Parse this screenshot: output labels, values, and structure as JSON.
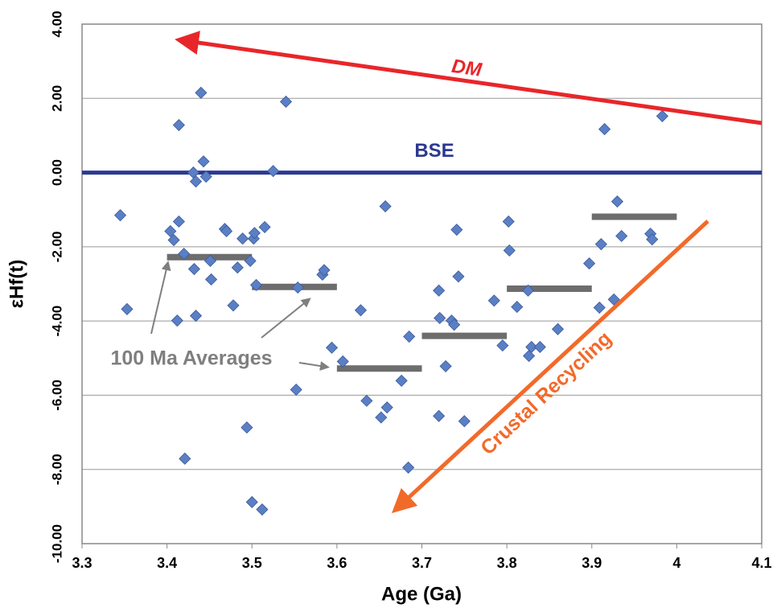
{
  "chart_data": {
    "type": "scatter",
    "x_label": "Age (Ga)",
    "y_label": "εHf(t)",
    "xlim": [
      3.3,
      4.1
    ],
    "xticks": [
      3.3,
      3.4,
      3.5,
      3.6,
      3.7,
      3.8,
      3.9,
      4,
      4.1
    ],
    "ylim": [
      -10,
      4
    ],
    "yticks": [
      {
        "value": -10,
        "label": "-10.00"
      },
      {
        "value": -8,
        "label": "-8.00"
      },
      {
        "value": -6,
        "label": "-6.00"
      },
      {
        "value": -4,
        "label": "-4.00"
      },
      {
        "value": -2,
        "label": "-2.00"
      },
      {
        "value": 0,
        "label": "0.00"
      },
      {
        "value": 2,
        "label": "2.00"
      },
      {
        "value": 4,
        "label": "4.00"
      }
    ],
    "grid": true,
    "color": "#5b7fc5",
    "x": [
      3.345,
      3.353,
      3.404,
      3.408,
      3.414,
      3.414,
      3.412,
      3.42,
      3.421,
      3.431,
      3.432,
      3.434,
      3.434,
      3.44,
      3.443,
      3.446,
      3.451,
      3.452,
      3.468,
      3.47,
      3.478,
      3.483,
      3.489,
      3.494,
      3.498,
      3.5,
      3.502,
      3.503,
      3.505,
      3.512,
      3.515,
      3.525,
      3.54,
      3.554,
      3.552,
      3.583,
      3.585,
      3.594,
      3.607,
      3.628,
      3.635,
      3.652,
      3.659,
      3.657,
      3.676,
      3.684,
      3.685,
      3.72,
      3.72,
      3.721,
      3.728,
      3.735,
      3.738,
      3.741,
      3.743,
      3.75,
      3.785,
      3.795,
      3.802,
      3.803,
      3.812,
      3.825,
      3.826,
      3.829,
      3.839,
      3.86,
      3.897,
      3.909,
      3.911,
      3.915,
      3.926,
      3.93,
      3.935,
      3.969,
      3.971,
      3.983
    ],
    "values": [
      -1.15,
      -3.68,
      -1.58,
      -1.82,
      1.28,
      -1.32,
      -3.99,
      -2.19,
      -7.71,
      0.0,
      -2.6,
      -3.86,
      -0.24,
      2.15,
      0.3,
      -0.11,
      -2.38,
      -2.88,
      -1.52,
      -1.58,
      -3.58,
      -2.56,
      -1.78,
      -6.87,
      -2.38,
      -8.88,
      -1.78,
      -1.63,
      -3.03,
      -9.08,
      -1.47,
      0.04,
      1.91,
      -3.1,
      -5.85,
      -2.75,
      -2.63,
      -4.72,
      -5.09,
      -3.71,
      -6.15,
      -6.6,
      -6.33,
      -0.91,
      -5.61,
      -7.95,
      -4.42,
      -3.18,
      -6.56,
      -3.92,
      -5.22,
      -3.99,
      -4.1,
      -1.54,
      -2.8,
      -6.7,
      -3.45,
      -4.66,
      -1.32,
      -2.1,
      -3.62,
      -3.18,
      -4.94,
      -4.7,
      -4.7,
      -4.22,
      -2.45,
      -3.64,
      -1.93,
      1.17,
      -3.42,
      -0.78,
      -1.71,
      -1.65,
      -1.8,
      1.52
    ],
    "averages": {
      "label": "100 Ma Averages",
      "color": "#6d6d6d",
      "x_start": [
        3.4,
        3.5,
        3.6,
        3.7,
        3.8,
        3.9
      ],
      "x_end": [
        3.5,
        3.6,
        3.7,
        3.8,
        3.9,
        4
      ],
      "values": [
        -2.28,
        -3.08,
        -5.28,
        -4.4,
        -3.13,
        -1.19
      ]
    },
    "reference_line": {
      "label": "BSE",
      "value": 0,
      "color": "#2b3990"
    },
    "annotations": {
      "dm": "DM",
      "crustal": "Crustal Recycling"
    }
  }
}
